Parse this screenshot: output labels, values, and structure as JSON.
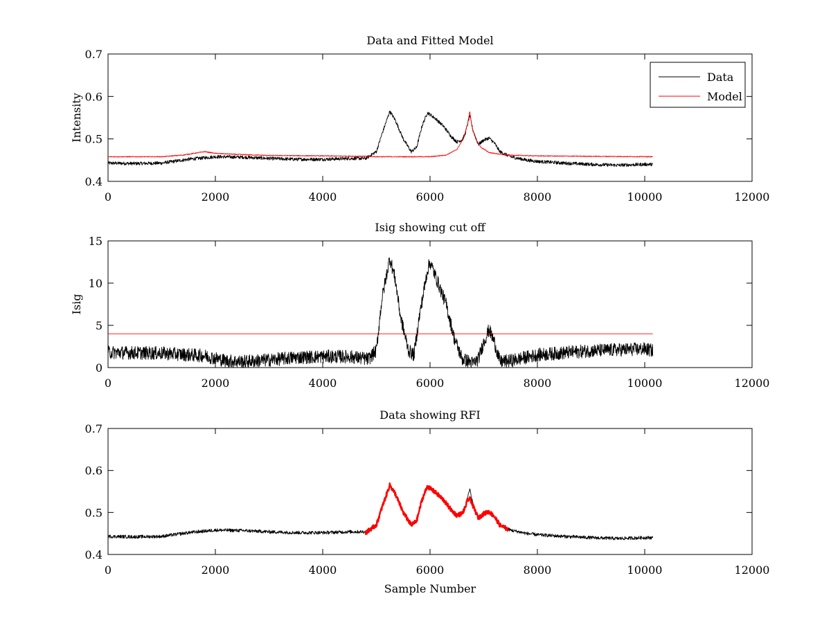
{
  "chart_data": [
    {
      "type": "line",
      "title": "Data and Fitted Model",
      "xlabel": "",
      "ylabel": "Intensity",
      "xlim": [
        0,
        12000
      ],
      "ylim": [
        0.4,
        0.7
      ],
      "xticks": [
        "0",
        "2000",
        "4000",
        "6000",
        "8000",
        "10000",
        "12000"
      ],
      "yticks": [
        "0.4",
        "0.5",
        "0.6",
        "0.7"
      ],
      "grid": false,
      "legend": {
        "position": "top-right",
        "entries": [
          "Data",
          "Model"
        ]
      },
      "series": [
        {
          "name": "Data",
          "color": "#000000",
          "noise": 0.004,
          "points": [
            [
              0,
              0.443
            ],
            [
              500,
              0.442
            ],
            [
              1000,
              0.443
            ],
            [
              1500,
              0.452
            ],
            [
              2000,
              0.458
            ],
            [
              2500,
              0.457
            ],
            [
              3000,
              0.454
            ],
            [
              3500,
              0.452
            ],
            [
              4000,
              0.452
            ],
            [
              4500,
              0.454
            ],
            [
              4800,
              0.454
            ],
            [
              5000,
              0.47
            ],
            [
              5100,
              0.51
            ],
            [
              5250,
              0.565
            ],
            [
              5350,
              0.545
            ],
            [
              5500,
              0.5
            ],
            [
              5650,
              0.47
            ],
            [
              5750,
              0.48
            ],
            [
              5850,
              0.53
            ],
            [
              5950,
              0.562
            ],
            [
              6100,
              0.548
            ],
            [
              6250,
              0.53
            ],
            [
              6400,
              0.505
            ],
            [
              6500,
              0.493
            ],
            [
              6600,
              0.498
            ],
            [
              6650,
              0.51
            ],
            [
              6700,
              0.535
            ],
            [
              6740,
              0.555
            ],
            [
              6800,
              0.52
            ],
            [
              6900,
              0.487
            ],
            [
              7000,
              0.497
            ],
            [
              7100,
              0.502
            ],
            [
              7200,
              0.49
            ],
            [
              7300,
              0.47
            ],
            [
              7500,
              0.458
            ],
            [
              7800,
              0.45
            ],
            [
              8000,
              0.447
            ],
            [
              8500,
              0.443
            ],
            [
              9000,
              0.44
            ],
            [
              9500,
              0.438
            ],
            [
              10000,
              0.44
            ],
            [
              10150,
              0.44
            ]
          ]
        },
        {
          "name": "Model",
          "color": "#ff0000",
          "noise": 0.001,
          "points": [
            [
              0,
              0.458
            ],
            [
              1000,
              0.458
            ],
            [
              1400,
              0.462
            ],
            [
              1800,
              0.47
            ],
            [
              2000,
              0.466
            ],
            [
              2500,
              0.463
            ],
            [
              3000,
              0.461
            ],
            [
              4000,
              0.46
            ],
            [
              4800,
              0.459
            ],
            [
              5000,
              0.458
            ],
            [
              6000,
              0.458
            ],
            [
              6300,
              0.462
            ],
            [
              6500,
              0.475
            ],
            [
              6620,
              0.5
            ],
            [
              6700,
              0.535
            ],
            [
              6740,
              0.565
            ],
            [
              6780,
              0.53
            ],
            [
              6850,
              0.5
            ],
            [
              6950,
              0.48
            ],
            [
              7100,
              0.468
            ],
            [
              7400,
              0.462
            ],
            [
              8000,
              0.46
            ],
            [
              9000,
              0.459
            ],
            [
              10150,
              0.458
            ]
          ]
        }
      ]
    },
    {
      "type": "line",
      "title": "Isig showing cut off",
      "xlabel": "",
      "ylabel": "Isig",
      "xlim": [
        0,
        12000
      ],
      "ylim": [
        0,
        15
      ],
      "xticks": [
        "0",
        "2000",
        "4000",
        "6000",
        "8000",
        "10000",
        "12000"
      ],
      "yticks": [
        "0",
        "5",
        "10",
        "15"
      ],
      "grid": false,
      "series": [
        {
          "color": "#000000",
          "noise": 0.8,
          "points": [
            [
              0,
              1.8
            ],
            [
              1000,
              1.7
            ],
            [
              1800,
              1.4
            ],
            [
              2200,
              0.8
            ],
            [
              2500,
              0.7
            ],
            [
              3000,
              0.9
            ],
            [
              3500,
              1.2
            ],
            [
              4000,
              1.3
            ],
            [
              4500,
              1.3
            ],
            [
              4850,
              1.0
            ],
            [
              5000,
              2.0
            ],
            [
              5100,
              8.0
            ],
            [
              5250,
              13.0
            ],
            [
              5350,
              10.5
            ],
            [
              5450,
              6.0
            ],
            [
              5600,
              2.0
            ],
            [
              5700,
              1.5
            ],
            [
              5800,
              6.0
            ],
            [
              5950,
              11.5
            ],
            [
              6000,
              12.5
            ],
            [
              6150,
              10.0
            ],
            [
              6300,
              7.5
            ],
            [
              6450,
              3.5
            ],
            [
              6600,
              1.0
            ],
            [
              6700,
              0.8
            ],
            [
              6800,
              0.5
            ],
            [
              6900,
              1.0
            ],
            [
              7000,
              3.0
            ],
            [
              7100,
              4.5
            ],
            [
              7200,
              3.0
            ],
            [
              7300,
              0.7
            ],
            [
              7500,
              0.8
            ],
            [
              8000,
              1.5
            ],
            [
              9000,
              2.0
            ],
            [
              10000,
              2.2
            ],
            [
              10150,
              2.0
            ]
          ]
        },
        {
          "color": "#ff0000",
          "noise": 0,
          "points": [
            [
              0,
              4
            ],
            [
              10150,
              4
            ]
          ]
        }
      ]
    },
    {
      "type": "line",
      "title": "Data showing RFI",
      "xlabel": "Sample Number",
      "ylabel": "",
      "xlim": [
        0,
        12000
      ],
      "ylim": [
        0.4,
        0.7
      ],
      "xticks": [
        "0",
        "2000",
        "4000",
        "6000",
        "8000",
        "10000",
        "12000"
      ],
      "yticks": [
        "0.4",
        "0.5",
        "0.6",
        "0.7"
      ],
      "grid": false,
      "series": [
        {
          "color": "#000000",
          "noise": 0.004,
          "points": [
            [
              0,
              0.443
            ],
            [
              500,
              0.442
            ],
            [
              1000,
              0.443
            ],
            [
              1500,
              0.452
            ],
            [
              2000,
              0.458
            ],
            [
              2500,
              0.457
            ],
            [
              3000,
              0.454
            ],
            [
              3500,
              0.452
            ],
            [
              4000,
              0.452
            ],
            [
              4500,
              0.454
            ],
            [
              4800,
              0.454
            ],
            [
              5000,
              0.47
            ],
            [
              5100,
              0.51
            ],
            [
              5250,
              0.565
            ],
            [
              5350,
              0.545
            ],
            [
              5500,
              0.5
            ],
            [
              5650,
              0.47
            ],
            [
              5750,
              0.48
            ],
            [
              5850,
              0.53
            ],
            [
              5950,
              0.562
            ],
            [
              6100,
              0.548
            ],
            [
              6250,
              0.53
            ],
            [
              6400,
              0.505
            ],
            [
              6500,
              0.493
            ],
            [
              6600,
              0.498
            ],
            [
              6650,
              0.51
            ],
            [
              6700,
              0.535
            ],
            [
              6740,
              0.555
            ],
            [
              6800,
              0.52
            ],
            [
              6900,
              0.487
            ],
            [
              7000,
              0.497
            ],
            [
              7100,
              0.502
            ],
            [
              7200,
              0.49
            ],
            [
              7300,
              0.47
            ],
            [
              7500,
              0.458
            ],
            [
              7800,
              0.45
            ],
            [
              8000,
              0.447
            ],
            [
              8500,
              0.443
            ],
            [
              9000,
              0.44
            ],
            [
              9500,
              0.438
            ],
            [
              10000,
              0.44
            ],
            [
              10150,
              0.44
            ]
          ]
        },
        {
          "color": "#ff0000",
          "noise": 0.005,
          "thick": true,
          "points": [
            [
              4800,
              0.452
            ],
            [
              5000,
              0.47
            ],
            [
              5100,
              0.51
            ],
            [
              5250,
              0.565
            ],
            [
              5350,
              0.545
            ],
            [
              5500,
              0.5
            ],
            [
              5650,
              0.47
            ],
            [
              5750,
              0.48
            ],
            [
              5850,
              0.53
            ],
            [
              5950,
              0.562
            ],
            [
              6100,
              0.548
            ],
            [
              6250,
              0.53
            ],
            [
              6400,
              0.505
            ],
            [
              6500,
              0.493
            ],
            [
              6600,
              0.498
            ],
            [
              6650,
              0.51
            ],
            [
              6700,
              0.53
            ],
            [
              6750,
              0.532
            ],
            [
              6800,
              0.515
            ],
            [
              6900,
              0.487
            ],
            [
              7000,
              0.497
            ],
            [
              7100,
              0.502
            ],
            [
              7200,
              0.49
            ],
            [
              7300,
              0.47
            ],
            [
              7450,
              0.46
            ]
          ]
        }
      ]
    }
  ]
}
